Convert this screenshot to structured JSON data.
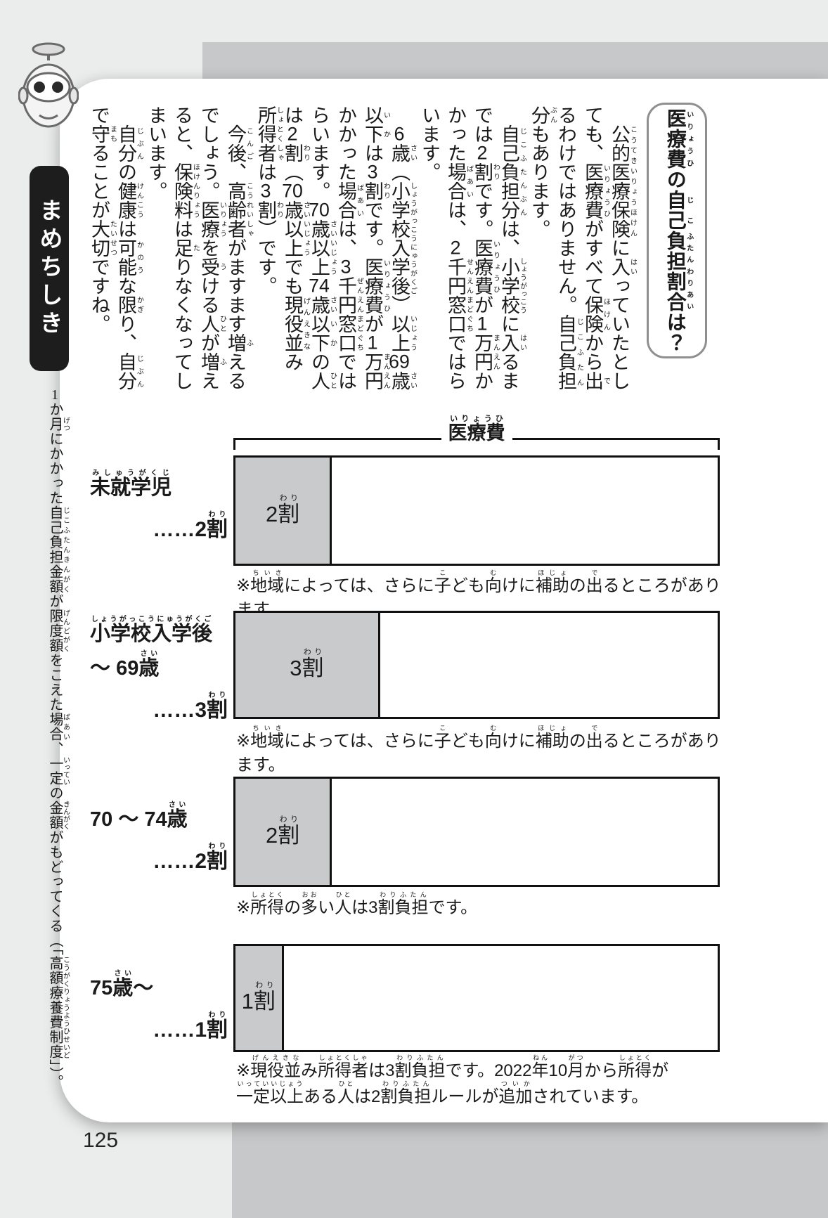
{
  "page": {
    "number": "125"
  },
  "sidebar": {
    "icon": "robot-mascot-icon",
    "badge": "まめちしき",
    "body": "1か月[げつ]にかかった自己負担金額[じこふたんきんがく]が限度額[げんどがく]をこえた場合[ばあい]、一定[いってい]の金額[きんがく]がもどってくる（「高額療養費制度[こうがくりょうようひせいど]」）。"
  },
  "article": {
    "title": "医療費[いりょうひ]の自己[じこ]負担割合[ふたんわりあい]は？",
    "paragraphs": [
      "公的医療保険[こうてきいりょうほけん]に入[はい]っていたとしても、医療費[いりょうひ]がすべて保険[ほけん]から出[で]るわけではありません。自己負担[じこふたん]分[ぶん]もあります。",
      "自己負担分[じこふたんぶん]は、小学校[しょうがっこう]に入[はい]るまでは2割[わり]です。医療費[いりょうひ]が1万円[まんえん]かかった場合[ばあい]は、2千円窓口[せんえんまどぐち]ではらいます。",
      "6歳[さい]（小学校入学後[しょうがっこうにゅうがくご]）以上[いじょう]69歳[さい]以下[いか]は3割[わり]です。医療費[いりょうひ]が1万円[まんえん]かかった場合[ばあい]は、3千円窓口[ぜんえんまどぐち]ではらいます。70歳[さい]以上[いじょう]74歳[さい]以下[いか]の人[ひと]は2割[わり]（70歳[さい]以上[いじょう]でも現役並[げんえきな]み所得者[しょとくしゃ]は3割[わり]）です。",
      "今後[こんご]、高齢者[こうれいしゃ]がますます増[ふ]えるでしょう。医療[いりょう]を受[う]ける人[ひと]が増[ふ]えると、保険料[ほけんりょう]は足[た]りなくなってしまいます。",
      "自分[じぶん]の健康[けんこう]は可能[かのう]な限[かぎ]り、自分[じぶん]で守[まも]ることが大切[たいせつ]ですね。"
    ]
  },
  "chart": {
    "header": "医療費[いりょうひ]",
    "rows": [
      {
        "label_line1": "未就学児[みしゅうがくじ]",
        "label_line2": "",
        "value": "……2割[わり]",
        "bar_text": "2割[わり]",
        "fill_percent": 20,
        "note": "※地域[ちいき]によっては、さらに子[こ]ども向[む]けに補助[ほじょ]の出[で]るところがあります。"
      },
      {
        "label_line1": "小学校入学後[しょうがっこうにゅうがくご]",
        "label_line2": "〜 69歳[さい]",
        "value": "……3割[わり]",
        "bar_text": "3割[わり]",
        "fill_percent": 30,
        "note": "※地域[ちいき]によっては、さらに子[こ]ども向[む]けに補助[ほじょ]の出[で]るところがあります。"
      },
      {
        "label_line1": "70 〜 74歳[さい]",
        "label_line2": "",
        "value": "……2割[わり]",
        "bar_text": "2割[わり]",
        "fill_percent": 20,
        "note": "※所得[しょとく]の多[おお]い人[ひと]は3割負担[わりふたん]です。"
      },
      {
        "label_line1": "75歳[さい]〜",
        "label_line2": "",
        "value": "……1割[わり]",
        "bar_text": "1割[わり]",
        "fill_percent": 10,
        "note": "※現役並[げんえきな]み所得者[しょとくしゃ]は3割負担[わりふたん]です。2022年[ねん]10月[がつ]から所得[しょとく]が一定以上[いっていいじょう]ある人[ひと]は2割負担[わりふたん]ルールが追加[ついか]されています。"
      }
    ]
  },
  "chart_data": {
    "type": "bar",
    "title": "医療費の自己負担割合",
    "header_label": "医療費",
    "categories": [
      "未就学児",
      "小学校入学後〜69歳",
      "70〜74歳",
      "75歳〜"
    ],
    "values": [
      2,
      3,
      2,
      1
    ],
    "unit": "割",
    "percent": [
      20,
      30,
      20,
      10
    ],
    "xlim": [
      0,
      100
    ],
    "notes": [
      "※地域によっては、さらに子ども向けに補助の出るところがあります。",
      "※地域によっては、さらに子ども向けに補助の出るところがあります。",
      "※所得の多い人は3割負担です。",
      "※現役並み所得者は3割負担です。2022年10月から所得が一定以上ある人は2割負担ルールが追加されています。"
    ],
    "colors": {
      "fill": "#c9cacb",
      "border": "#111111"
    }
  }
}
